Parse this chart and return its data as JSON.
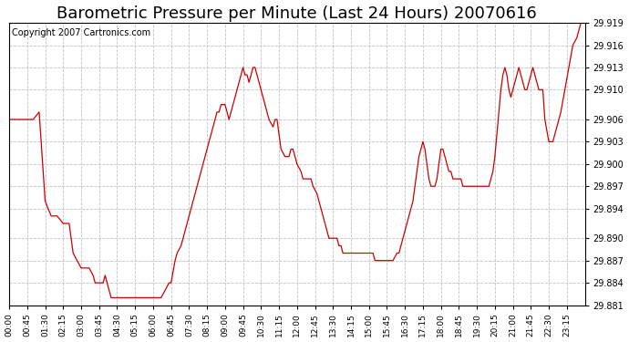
{
  "title": "Barometric Pressure per Minute (Last 24 Hours) 20070616",
  "copyright": "Copyright 2007 Cartronics.com",
  "line_color": "#cc0000",
  "bg_color": "#ffffff",
  "plot_bg_color": "#ffffff",
  "grid_color": "#bbbbbb",
  "ylim": [
    29.881,
    29.919
  ],
  "yticks": [
    29.881,
    29.884,
    29.887,
    29.89,
    29.894,
    29.897,
    29.9,
    29.903,
    29.906,
    29.91,
    29.913,
    29.916,
    29.919
  ],
  "xtick_labels": [
    "00:00",
    "00:45",
    "01:30",
    "02:15",
    "03:00",
    "03:45",
    "04:30",
    "05:15",
    "06:00",
    "06:45",
    "07:30",
    "08:15",
    "09:00",
    "09:45",
    "10:30",
    "11:15",
    "12:00",
    "12:45",
    "13:30",
    "14:15",
    "15:00",
    "15:45",
    "16:30",
    "17:15",
    "18:00",
    "18:45",
    "19:30",
    "20:15",
    "21:00",
    "21:45",
    "22:30",
    "23:15"
  ],
  "title_fontsize": 13,
  "copyright_fontsize": 7,
  "waypoints": [
    [
      0,
      29.906
    ],
    [
      30,
      29.906
    ],
    [
      60,
      29.906
    ],
    [
      75,
      29.907
    ],
    [
      90,
      29.895
    ],
    [
      105,
      29.893
    ],
    [
      120,
      29.893
    ],
    [
      135,
      29.892
    ],
    [
      150,
      29.892
    ],
    [
      160,
      29.888
    ],
    [
      170,
      29.887
    ],
    [
      180,
      29.886
    ],
    [
      190,
      29.886
    ],
    [
      200,
      29.886
    ],
    [
      210,
      29.885
    ],
    [
      215,
      29.884
    ],
    [
      220,
      29.884
    ],
    [
      225,
      29.884
    ],
    [
      230,
      29.884
    ],
    [
      235,
      29.884
    ],
    [
      240,
      29.885
    ],
    [
      245,
      29.884
    ],
    [
      250,
      29.883
    ],
    [
      255,
      29.882
    ],
    [
      260,
      29.882
    ],
    [
      265,
      29.882
    ],
    [
      270,
      29.882
    ],
    [
      280,
      29.882
    ],
    [
      285,
      29.882
    ],
    [
      290,
      29.882
    ],
    [
      295,
      29.882
    ],
    [
      300,
      29.882
    ],
    [
      305,
      29.882
    ],
    [
      310,
      29.882
    ],
    [
      315,
      29.882
    ],
    [
      320,
      29.882
    ],
    [
      325,
      29.882
    ],
    [
      330,
      29.882
    ],
    [
      335,
      29.882
    ],
    [
      340,
      29.882
    ],
    [
      345,
      29.882
    ],
    [
      350,
      29.882
    ],
    [
      355,
      29.882
    ],
    [
      360,
      29.882
    ],
    [
      370,
      29.882
    ],
    [
      380,
      29.882
    ],
    [
      390,
      29.883
    ],
    [
      400,
      29.884
    ],
    [
      405,
      29.884
    ],
    [
      415,
      29.887
    ],
    [
      420,
      29.888
    ],
    [
      430,
      29.889
    ],
    [
      440,
      29.891
    ],
    [
      450,
      29.893
    ],
    [
      460,
      29.895
    ],
    [
      470,
      29.897
    ],
    [
      480,
      29.899
    ],
    [
      490,
      29.901
    ],
    [
      500,
      29.903
    ],
    [
      510,
      29.905
    ],
    [
      515,
      29.906
    ],
    [
      520,
      29.907
    ],
    [
      525,
      29.907
    ],
    [
      530,
      29.908
    ],
    [
      535,
      29.908
    ],
    [
      540,
      29.908
    ],
    [
      545,
      29.907
    ],
    [
      550,
      29.906
    ],
    [
      555,
      29.907
    ],
    [
      560,
      29.908
    ],
    [
      565,
      29.909
    ],
    [
      570,
      29.91
    ],
    [
      575,
      29.911
    ],
    [
      580,
      29.912
    ],
    [
      585,
      29.913
    ],
    [
      590,
      29.912
    ],
    [
      595,
      29.912
    ],
    [
      600,
      29.911
    ],
    [
      605,
      29.912
    ],
    [
      610,
      29.913
    ],
    [
      615,
      29.913
    ],
    [
      620,
      29.912
    ],
    [
      625,
      29.911
    ],
    [
      630,
      29.91
    ],
    [
      640,
      29.908
    ],
    [
      645,
      29.907
    ],
    [
      650,
      29.906
    ],
    [
      660,
      29.905
    ],
    [
      665,
      29.906
    ],
    [
      670,
      29.906
    ],
    [
      675,
      29.904
    ],
    [
      680,
      29.902
    ],
    [
      690,
      29.901
    ],
    [
      700,
      29.901
    ],
    [
      705,
      29.902
    ],
    [
      710,
      29.902
    ],
    [
      715,
      29.901
    ],
    [
      720,
      29.9
    ],
    [
      730,
      29.899
    ],
    [
      735,
      29.898
    ],
    [
      740,
      29.898
    ],
    [
      745,
      29.898
    ],
    [
      750,
      29.898
    ],
    [
      755,
      29.898
    ],
    [
      760,
      29.897
    ],
    [
      770,
      29.896
    ],
    [
      775,
      29.895
    ],
    [
      780,
      29.894
    ],
    [
      785,
      29.893
    ],
    [
      790,
      29.892
    ],
    [
      795,
      29.891
    ],
    [
      800,
      29.89
    ],
    [
      810,
      29.89
    ],
    [
      815,
      29.89
    ],
    [
      820,
      29.89
    ],
    [
      825,
      29.889
    ],
    [
      830,
      29.889
    ],
    [
      835,
      29.888
    ],
    [
      840,
      29.888
    ],
    [
      845,
      29.888
    ],
    [
      850,
      29.888
    ],
    [
      855,
      29.888
    ],
    [
      860,
      29.888
    ],
    [
      870,
      29.888
    ],
    [
      875,
      29.888
    ],
    [
      880,
      29.888
    ],
    [
      885,
      29.888
    ],
    [
      890,
      29.888
    ],
    [
      895,
      29.888
    ],
    [
      900,
      29.888
    ],
    [
      910,
      29.888
    ],
    [
      915,
      29.887
    ],
    [
      920,
      29.887
    ],
    [
      925,
      29.887
    ],
    [
      930,
      29.887
    ],
    [
      935,
      29.887
    ],
    [
      940,
      29.887
    ],
    [
      945,
      29.887
    ],
    [
      950,
      29.887
    ],
    [
      955,
      29.887
    ],
    [
      960,
      29.887
    ],
    [
      970,
      29.888
    ],
    [
      975,
      29.888
    ],
    [
      980,
      29.889
    ],
    [
      985,
      29.89
    ],
    [
      990,
      29.891
    ],
    [
      995,
      29.892
    ],
    [
      1000,
      29.893
    ],
    [
      1010,
      29.895
    ],
    [
      1015,
      29.897
    ],
    [
      1020,
      29.899
    ],
    [
      1025,
      29.901
    ],
    [
      1030,
      29.902
    ],
    [
      1035,
      29.903
    ],
    [
      1040,
      29.902
    ],
    [
      1045,
      29.9
    ],
    [
      1050,
      29.898
    ],
    [
      1055,
      29.897
    ],
    [
      1060,
      29.897
    ],
    [
      1065,
      29.897
    ],
    [
      1070,
      29.898
    ],
    [
      1075,
      29.9
    ],
    [
      1080,
      29.902
    ],
    [
      1085,
      29.902
    ],
    [
      1090,
      29.901
    ],
    [
      1095,
      29.9
    ],
    [
      1100,
      29.899
    ],
    [
      1105,
      29.899
    ],
    [
      1110,
      29.898
    ],
    [
      1115,
      29.898
    ],
    [
      1120,
      29.898
    ],
    [
      1125,
      29.898
    ],
    [
      1130,
      29.898
    ],
    [
      1135,
      29.897
    ],
    [
      1140,
      29.897
    ],
    [
      1145,
      29.897
    ],
    [
      1150,
      29.897
    ],
    [
      1155,
      29.897
    ],
    [
      1160,
      29.897
    ],
    [
      1165,
      29.897
    ],
    [
      1170,
      29.897
    ],
    [
      1175,
      29.897
    ],
    [
      1180,
      29.897
    ],
    [
      1185,
      29.897
    ],
    [
      1190,
      29.897
    ],
    [
      1200,
      29.897
    ],
    [
      1205,
      29.898
    ],
    [
      1210,
      29.899
    ],
    [
      1215,
      29.901
    ],
    [
      1220,
      29.904
    ],
    [
      1225,
      29.907
    ],
    [
      1230,
      29.91
    ],
    [
      1235,
      29.912
    ],
    [
      1240,
      29.913
    ],
    [
      1245,
      29.912
    ],
    [
      1250,
      29.91
    ],
    [
      1255,
      29.909
    ],
    [
      1260,
      29.91
    ],
    [
      1265,
      29.911
    ],
    [
      1270,
      29.912
    ],
    [
      1275,
      29.913
    ],
    [
      1280,
      29.912
    ],
    [
      1285,
      29.911
    ],
    [
      1290,
      29.91
    ],
    [
      1295,
      29.91
    ],
    [
      1300,
      29.911
    ],
    [
      1305,
      29.912
    ],
    [
      1310,
      29.913
    ],
    [
      1315,
      29.912
    ],
    [
      1320,
      29.911
    ],
    [
      1325,
      29.91
    ],
    [
      1330,
      29.91
    ],
    [
      1335,
      29.91
    ],
    [
      1340,
      29.906
    ],
    [
      1350,
      29.903
    ],
    [
      1355,
      29.903
    ],
    [
      1360,
      29.903
    ],
    [
      1365,
      29.904
    ],
    [
      1370,
      29.905
    ],
    [
      1380,
      29.907
    ],
    [
      1390,
      29.91
    ],
    [
      1400,
      29.913
    ],
    [
      1410,
      29.916
    ],
    [
      1420,
      29.917
    ],
    [
      1425,
      29.918
    ],
    [
      1430,
      29.919
    ],
    [
      1440,
      29.919
    ]
  ]
}
